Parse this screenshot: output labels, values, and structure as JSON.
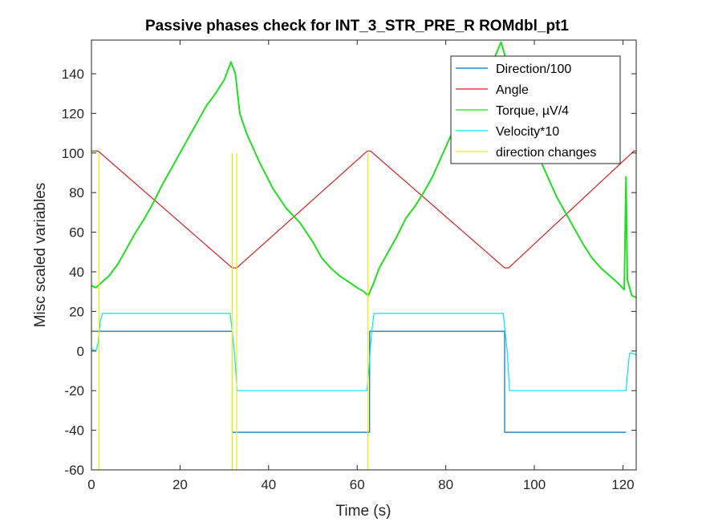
{
  "chart_data": {
    "type": "line",
    "title": "Passive phases check for INT_3_STR_PRE_R ROMdbl_pt1",
    "xlabel": "Time (s)",
    "ylabel": "Misc scaled variables",
    "xlim": [
      0,
      123
    ],
    "ylim": [
      -60,
      157
    ],
    "xticks": [
      0,
      20,
      40,
      60,
      80,
      100,
      120
    ],
    "yticks": [
      -60,
      -40,
      -20,
      0,
      20,
      40,
      60,
      80,
      100,
      120,
      140
    ],
    "grid": false,
    "legend_position": "top-right",
    "series": [
      {
        "name": "Direction/100",
        "color": "#0072BD",
        "points": [
          [
            0,
            10
          ],
          [
            31.8,
            10
          ],
          [
            31.8,
            -41
          ],
          [
            62.8,
            -41
          ],
          [
            62.8,
            10
          ],
          [
            93.3,
            10
          ],
          [
            93.3,
            -41
          ],
          [
            120.7,
            -41
          ]
        ]
      },
      {
        "name": "Angle",
        "color": "#D62020",
        "points": [
          [
            0,
            101
          ],
          [
            1.5,
            101
          ],
          [
            31.8,
            42
          ],
          [
            32.8,
            42
          ],
          [
            62.3,
            101
          ],
          [
            63,
            101
          ],
          [
            93.3,
            42
          ],
          [
            94.2,
            42
          ],
          [
            122.5,
            101
          ],
          [
            123,
            101
          ]
        ]
      },
      {
        "name": "Torque, µV/4",
        "color": "#22DD22",
        "points": [
          [
            0,
            33
          ],
          [
            1,
            32
          ],
          [
            2,
            34
          ],
          [
            4,
            38
          ],
          [
            6,
            44
          ],
          [
            8,
            52
          ],
          [
            10,
            60
          ],
          [
            12,
            67
          ],
          [
            14,
            75
          ],
          [
            16,
            84
          ],
          [
            18,
            92
          ],
          [
            20,
            100
          ],
          [
            22,
            108
          ],
          [
            24,
            116
          ],
          [
            26,
            124
          ],
          [
            28,
            130
          ],
          [
            30,
            137
          ],
          [
            31.5,
            146
          ],
          [
            32.5,
            140
          ],
          [
            33.5,
            120
          ],
          [
            35,
            110
          ],
          [
            38,
            95
          ],
          [
            41,
            82
          ],
          [
            44,
            72
          ],
          [
            47,
            65
          ],
          [
            50,
            55
          ],
          [
            52,
            47
          ],
          [
            54,
            42
          ],
          [
            56,
            38
          ],
          [
            58,
            35
          ],
          [
            60,
            32
          ],
          [
            61.5,
            30
          ],
          [
            62.5,
            28
          ],
          [
            63.5,
            33
          ],
          [
            65,
            42
          ],
          [
            67,
            50
          ],
          [
            69,
            58
          ],
          [
            71,
            67
          ],
          [
            73,
            73
          ],
          [
            75,
            80
          ],
          [
            77,
            88
          ],
          [
            79,
            98
          ],
          [
            81,
            108
          ],
          [
            83,
            116
          ],
          [
            85,
            124
          ],
          [
            87,
            132
          ],
          [
            89,
            140
          ],
          [
            91,
            148
          ],
          [
            92.5,
            156
          ],
          [
            93.5,
            148
          ],
          [
            95,
            136
          ],
          [
            97,
            122
          ],
          [
            99,
            110
          ],
          [
            101,
            98
          ],
          [
            103,
            88
          ],
          [
            105,
            78
          ],
          [
            107,
            70
          ],
          [
            109,
            62
          ],
          [
            111,
            54
          ],
          [
            113,
            47
          ],
          [
            115,
            42
          ],
          [
            117,
            38
          ],
          [
            119,
            34
          ],
          [
            120.3,
            31
          ],
          [
            120.7,
            88
          ],
          [
            121,
            36
          ],
          [
            122,
            28
          ],
          [
            123,
            27
          ]
        ]
      },
      {
        "name": "Velocity*10",
        "color": "#00E5EE",
        "points": [
          [
            0,
            1
          ],
          [
            1,
            0
          ],
          [
            1.5,
            4
          ],
          [
            2,
            15
          ],
          [
            2.5,
            19
          ],
          [
            31.3,
            19
          ],
          [
            31.8,
            10
          ],
          [
            32.3,
            -1
          ],
          [
            32.9,
            -20
          ],
          [
            62.2,
            -20
          ],
          [
            62.6,
            -10
          ],
          [
            63.2,
            8
          ],
          [
            63.8,
            19
          ],
          [
            93,
            19
          ],
          [
            93.4,
            10
          ],
          [
            93.9,
            -1
          ],
          [
            94.4,
            -20
          ],
          [
            120.7,
            -20
          ],
          [
            121,
            -12
          ],
          [
            121.5,
            -1
          ],
          [
            122,
            -1
          ],
          [
            123,
            -2
          ]
        ]
      },
      {
        "name": "direction changes",
        "color": "#F0F000",
        "type": "vlines",
        "x": [
          1.7,
          31.8,
          32.8,
          62.4
        ],
        "y_range": [
          -60,
          100
        ]
      }
    ]
  }
}
